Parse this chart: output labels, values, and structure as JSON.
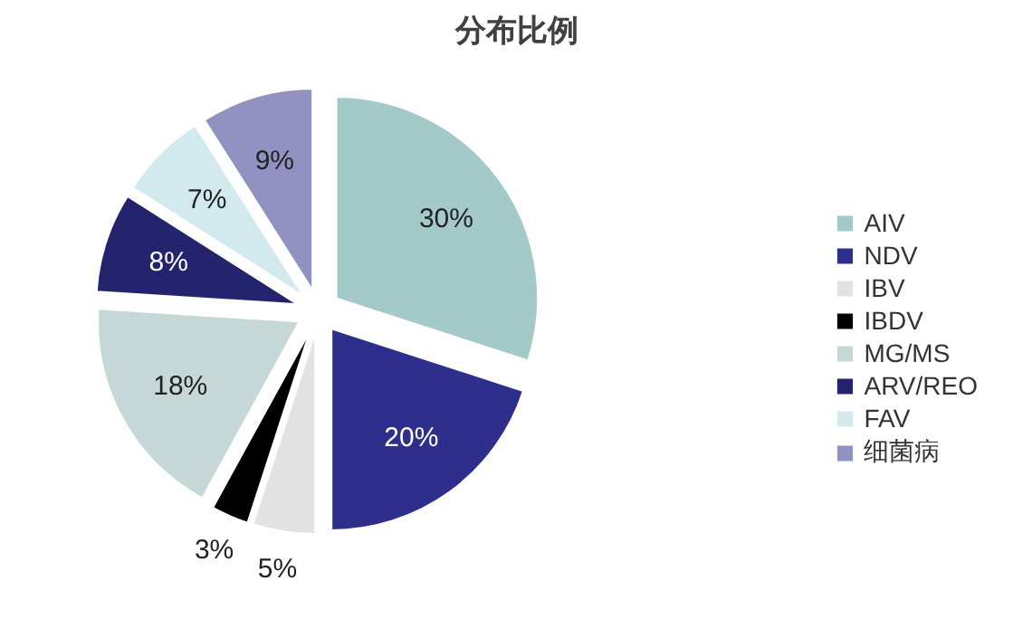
{
  "chart_data": {
    "type": "pie",
    "title": "分布比例",
    "categories": [
      "AIV",
      "NDV",
      "IBV",
      "IBDV",
      "MG/MS",
      "ARV/REO",
      "FAV",
      "细菌病"
    ],
    "values": [
      30,
      20,
      5,
      3,
      18,
      8,
      7,
      9
    ],
    "colors": [
      "#a3c9c9",
      "#2e2e8c",
      "#e2e2e2",
      "#000000",
      "#c5d7d7",
      "#24246e",
      "#d2e9ee",
      "#9292c2"
    ],
    "value_labels": [
      "30%",
      "20%",
      "5%",
      "3%",
      "18%",
      "8%",
      "7%",
      "9%"
    ],
    "legend": "right"
  }
}
